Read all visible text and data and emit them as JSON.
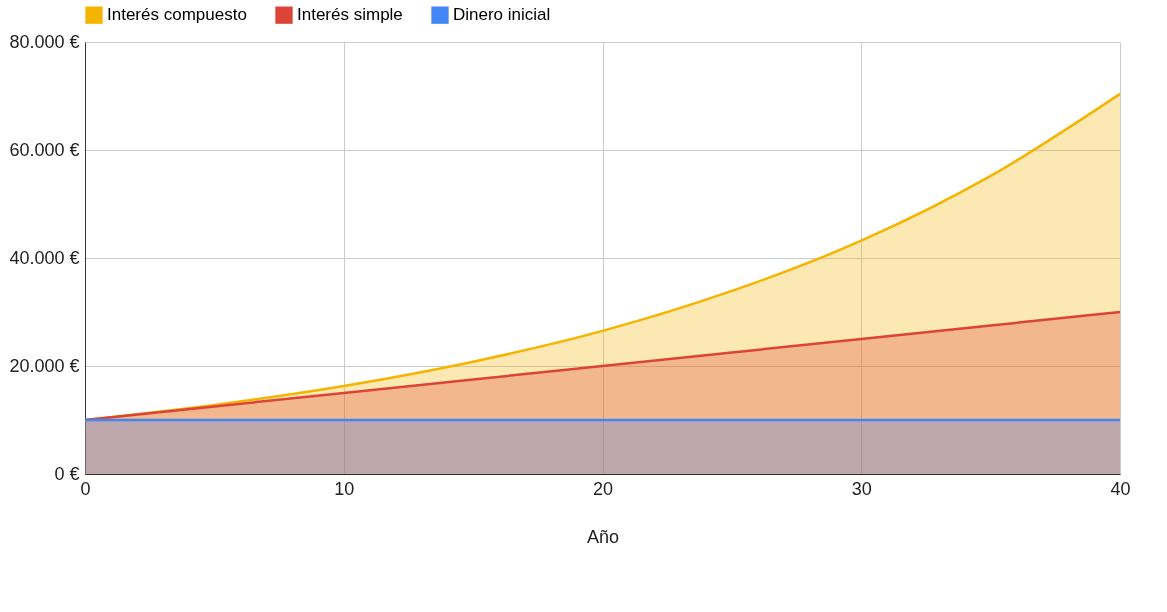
{
  "chart_data": {
    "type": "area",
    "xlabel": "Año",
    "x": [
      0,
      5,
      10,
      15,
      20,
      25,
      30,
      35,
      40
    ],
    "series": [
      {
        "name": "Interés compuesto",
        "color": "#f4b400",
        "values": [
          10000,
          12800,
          16300,
          20800,
          26500,
          33900,
          43200,
          55200,
          70400
        ]
      },
      {
        "name": "Interés simple",
        "color": "#db4437",
        "values": [
          10000,
          12500,
          15000,
          17500,
          20000,
          22500,
          25000,
          27500,
          30000
        ]
      },
      {
        "name": "Dinero inicial",
        "color": "#4285f4",
        "values": [
          10000,
          10000,
          10000,
          10000,
          10000,
          10000,
          10000,
          10000,
          10000
        ]
      }
    ],
    "xlim": [
      0,
      40
    ],
    "xticks": [
      0,
      10,
      20,
      30,
      40
    ],
    "ylim": [
      0,
      80000
    ],
    "yticks": [
      {
        "value": 0,
        "label": "0 €"
      },
      {
        "value": 20000,
        "label": "20.000 €"
      },
      {
        "value": 40000,
        "label": "40.000 €"
      },
      {
        "value": 60000,
        "label": "60.000 €"
      },
      {
        "value": 80000,
        "label": "80.000 €"
      }
    ],
    "grid": true,
    "legend": "top"
  }
}
